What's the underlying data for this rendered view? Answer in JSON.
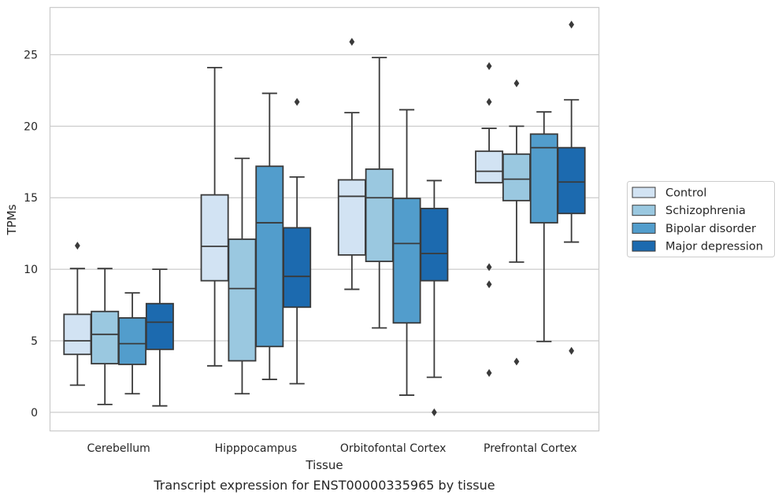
{
  "chart_data": {
    "type": "box",
    "xlabel": "Tissue",
    "ylabel": "TPMs",
    "caption": "Transcript expression for ENST00000335965 by tissue",
    "ylim": [
      -1.3,
      28.3
    ],
    "yticks": [
      0,
      5,
      10,
      15,
      20,
      25
    ],
    "grid": "horizontal",
    "legend_position": "right",
    "categories": [
      "Cerebellum",
      "Hipppocampus",
      "Orbitofontal Cortex",
      "Prefrontal Cortex"
    ],
    "series": [
      {
        "name": "Control",
        "color": "#d2e3f3",
        "boxes": [
          {
            "whislo": 1.9,
            "q1": 4.05,
            "med": 5.0,
            "q3": 6.85,
            "whishi": 10.05,
            "fliers": [
              11.65
            ]
          },
          {
            "whislo": 3.25,
            "q1": 9.2,
            "med": 11.6,
            "q3": 15.2,
            "whishi": 24.1,
            "fliers": []
          },
          {
            "whislo": 8.6,
            "q1": 11.0,
            "med": 15.1,
            "q3": 16.25,
            "whishi": 20.95,
            "fliers": [
              25.9
            ]
          },
          {
            "whislo": 16.05,
            "q1": 16.05,
            "med": 16.85,
            "q3": 18.25,
            "whishi": 19.85,
            "fliers": [
              24.2,
              21.7,
              10.15,
              8.95,
              2.75
            ]
          }
        ]
      },
      {
        "name": "Schizophrenia",
        "color": "#9ac8e0",
        "boxes": [
          {
            "whislo": 0.55,
            "q1": 3.4,
            "med": 5.45,
            "q3": 7.05,
            "whishi": 10.05,
            "fliers": []
          },
          {
            "whislo": 1.3,
            "q1": 3.6,
            "med": 8.65,
            "q3": 12.1,
            "whishi": 17.75,
            "fliers": []
          },
          {
            "whislo": 5.9,
            "q1": 10.55,
            "med": 15.0,
            "q3": 17.0,
            "whishi": 24.8,
            "fliers": []
          },
          {
            "whislo": 10.5,
            "q1": 14.8,
            "med": 16.3,
            "q3": 18.05,
            "whishi": 20.0,
            "fliers": [
              23.0,
              3.55
            ]
          }
        ]
      },
      {
        "name": "Bipolar disorder",
        "color": "#529dcc",
        "boxes": [
          {
            "whislo": 1.3,
            "q1": 3.35,
            "med": 4.8,
            "q3": 6.6,
            "whishi": 8.35,
            "fliers": []
          },
          {
            "whislo": 2.3,
            "q1": 4.6,
            "med": 13.25,
            "q3": 17.2,
            "whishi": 22.3,
            "fliers": []
          },
          {
            "whislo": 1.2,
            "q1": 6.25,
            "med": 11.8,
            "q3": 14.95,
            "whishi": 21.15,
            "fliers": []
          },
          {
            "whislo": 4.95,
            "q1": 13.25,
            "med": 18.5,
            "q3": 19.45,
            "whishi": 21.0,
            "fliers": []
          }
        ]
      },
      {
        "name": "Major depression",
        "color": "#1c6aaf",
        "boxes": [
          {
            "whislo": 0.45,
            "q1": 4.4,
            "med": 6.3,
            "q3": 7.6,
            "whishi": 10.0,
            "fliers": []
          },
          {
            "whislo": 2.0,
            "q1": 7.35,
            "med": 9.5,
            "q3": 12.9,
            "whishi": 16.45,
            "fliers": [
              21.7
            ]
          },
          {
            "whislo": 2.45,
            "q1": 9.2,
            "med": 11.1,
            "q3": 14.25,
            "whishi": 16.2,
            "fliers": [
              0.0
            ]
          },
          {
            "whislo": 11.9,
            "q1": 13.9,
            "med": 16.1,
            "q3": 18.5,
            "whishi": 21.85,
            "fliers": [
              27.1,
              4.3
            ]
          }
        ]
      }
    ]
  }
}
